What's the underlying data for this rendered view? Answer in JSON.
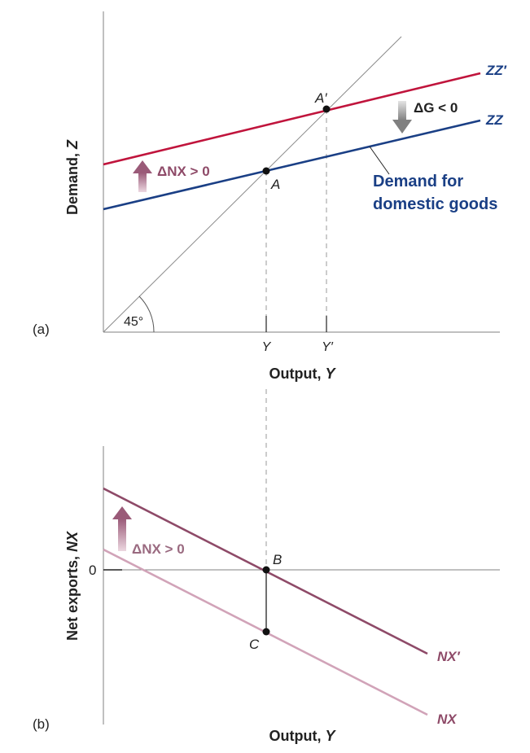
{
  "panel_a": {
    "tag": "(a)",
    "y_axis_label": "Demand, ",
    "y_axis_symbol": "Z",
    "x_axis_label": "Output, ",
    "x_axis_symbol": "Y",
    "angle_label": "45°",
    "zz_prime_label": "ZZ′",
    "zz_label": "ZZ",
    "point_a": "A",
    "point_a_prime": "A′",
    "tick_y": "Y",
    "tick_y_prime": "Y′",
    "delta_nx": "ΔNX > 0",
    "delta_g": "ΔG < 0",
    "demand_line1": "Demand for",
    "demand_line2": "domestic goods",
    "colors": {
      "zz_prime": "#c0143c",
      "zz": "#1a3f85",
      "axis": "#808080"
    }
  },
  "panel_b": {
    "tag": "(b)",
    "y_axis_label": "Net exports, ",
    "y_axis_symbol": "NX",
    "x_axis_label": "Output, ",
    "x_axis_symbol": "Y",
    "zero": "0",
    "delta_nx": "ΔNX > 0",
    "point_b": "B",
    "point_c": "C",
    "nx_prime_label": "NX′",
    "nx_label": "NX",
    "colors": {
      "nx_prime": "#8e4a68",
      "nx": "#d1a3b8"
    }
  }
}
